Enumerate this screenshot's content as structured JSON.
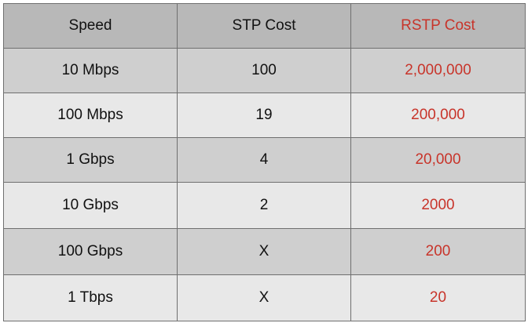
{
  "table": {
    "headers": {
      "speed": "Speed",
      "stp_cost": "STP Cost",
      "rstp_cost": "RSTP Cost"
    },
    "rows": [
      {
        "speed": "10 Mbps",
        "stp_cost": "100",
        "rstp_cost": "2,000,000"
      },
      {
        "speed": "100 Mbps",
        "stp_cost": "19",
        "rstp_cost": "200,000"
      },
      {
        "speed": "1 Gbps",
        "stp_cost": "4",
        "rstp_cost": "20,000"
      },
      {
        "speed": "10 Gbps",
        "stp_cost": "2",
        "rstp_cost": "2000"
      },
      {
        "speed": "100 Gbps",
        "stp_cost": "X",
        "rstp_cost": "200"
      },
      {
        "speed": "1 Tbps",
        "stp_cost": "X",
        "rstp_cost": "20"
      }
    ]
  },
  "colors": {
    "header_bg": "#b8b8b8",
    "row_dark_bg": "#cfcfcf",
    "row_light_bg": "#e8e8e8",
    "rstp_text": "#c8342a",
    "border": "#6f6f6f"
  }
}
